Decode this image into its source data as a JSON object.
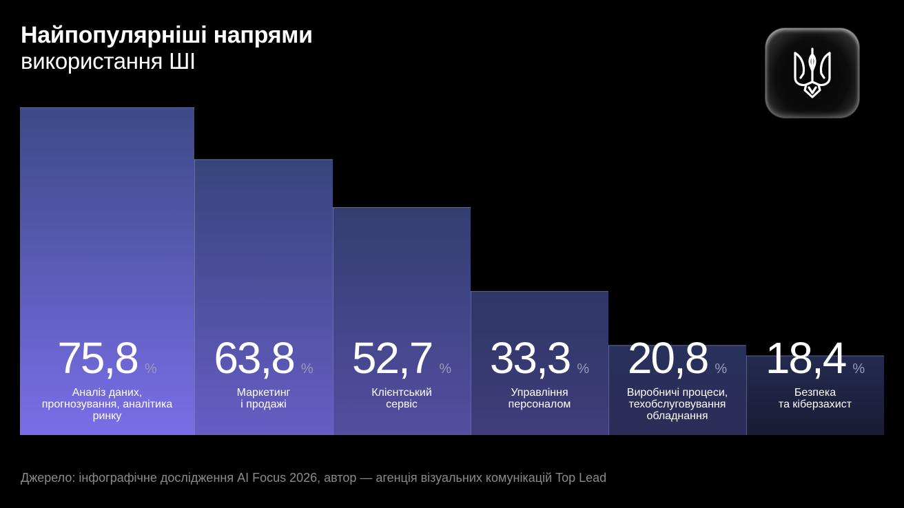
{
  "header": {
    "title_line1": "Найпопулярніші напрями",
    "title_line2": "використання ШІ"
  },
  "logo": {
    "icon": "trident-icon"
  },
  "chart_data": {
    "type": "bar",
    "unit": "%",
    "categories": [
      [
        "Аналіз даних,",
        "прогнозування, аналітика",
        "ринку"
      ],
      [
        "Маркетинг",
        "і продажі"
      ],
      [
        "Клієнтський",
        "сервіс"
      ],
      [
        "Управління",
        "персоналом"
      ],
      [
        "Виробничі процеси,",
        "техобслуговування",
        "обладнання"
      ],
      [
        "Безпека",
        "та кіберзахист"
      ]
    ],
    "values": [
      75.8,
      63.8,
      52.7,
      33.3,
      20.8,
      18.4
    ],
    "value_labels": [
      "75,8",
      "63,8",
      "52,7",
      "33,3",
      "20,8",
      "18,4"
    ],
    "ylim": [
      0,
      75.8
    ],
    "colors": {
      "bar_top": "#3b4a86",
      "bar_bottom_first": "#7a6ee8",
      "bar_bottom_last": "#1a1b34",
      "bar_edge": "#8f93c4",
      "label_text": "#ffffff",
      "unit_text": "#9a9ab8"
    }
  },
  "footer": {
    "source": "Джерело: інфографічне дослідження AI Focus 2026, автор — агенція візуальних комунікацій Top Lead"
  }
}
